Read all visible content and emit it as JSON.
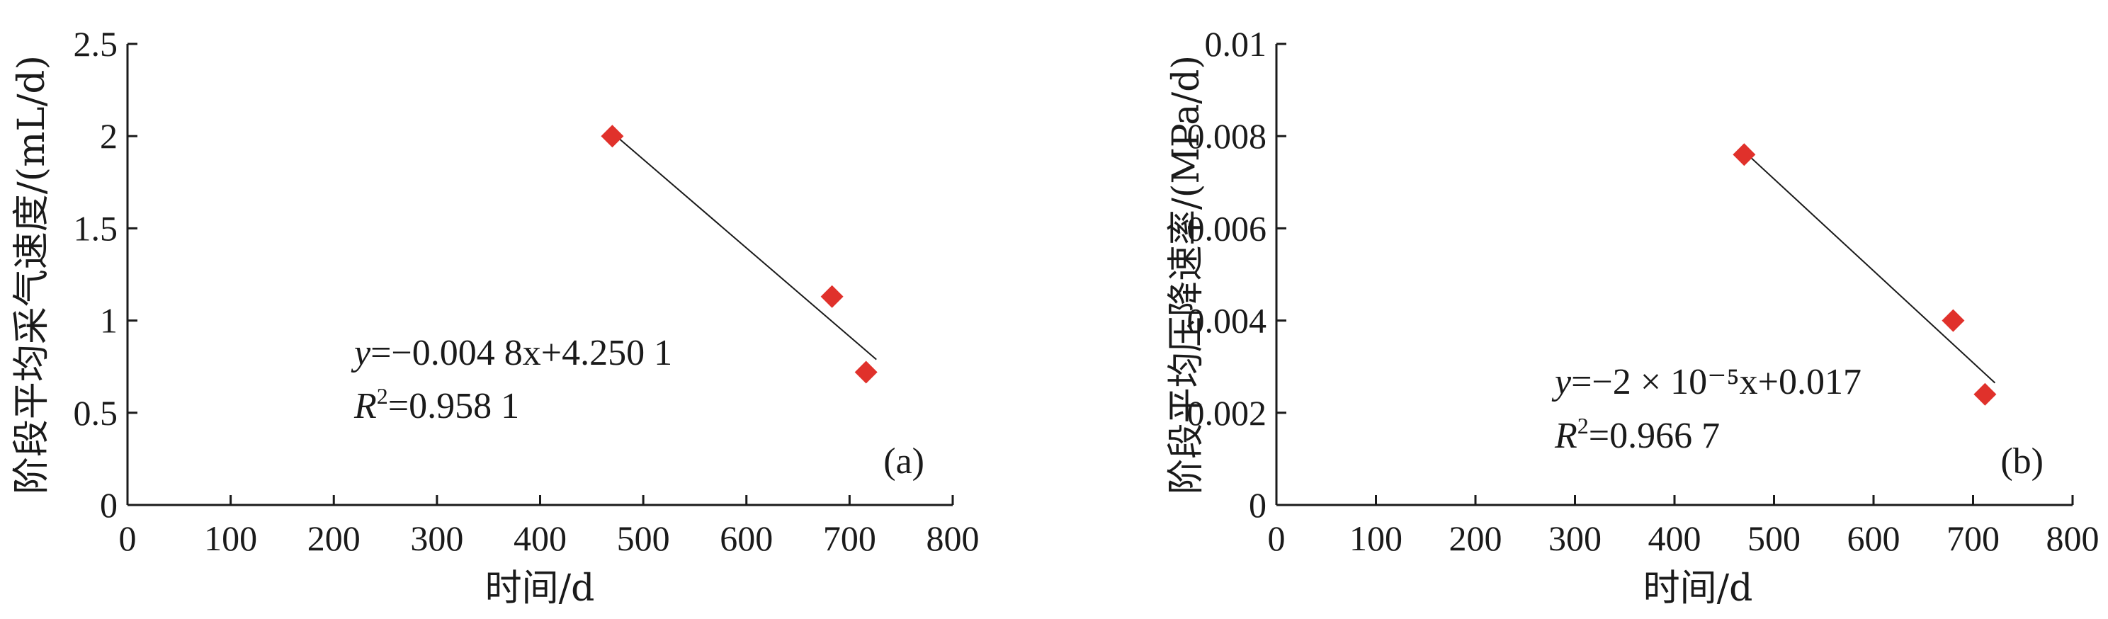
{
  "chart_data": [
    {
      "type": "scatter",
      "panel_label": "(a)",
      "xlabel": "时间/d",
      "ylabel": "阶段平均采气速度/(mL/d)",
      "xlim": [
        0,
        800
      ],
      "ylim": [
        0,
        2.5
      ],
      "xticks": [
        "0",
        "100",
        "200",
        "300",
        "400",
        "500",
        "600",
        "700",
        "800"
      ],
      "yticks": [
        "0",
        "0.5",
        "1",
        "1.5",
        "2",
        "2.5"
      ],
      "points": [
        {
          "x": 470,
          "y": 2.0
        },
        {
          "x": 683,
          "y": 1.13
        },
        {
          "x": 716,
          "y": 0.72
        }
      ],
      "marker_color": "#e0312b",
      "trendline": {
        "x_start": 470,
        "x_end": 716
      },
      "equation": {
        "y_var": "y",
        "rhs": "=−0.004 8x+4.250 1",
        "r_var": "R",
        "r_rhs": "=0.958 1"
      }
    },
    {
      "type": "scatter",
      "panel_label": "(b)",
      "xlabel": "时间/d",
      "ylabel": "阶段平均压降速率/(MPa/d)",
      "xlim": [
        0,
        800
      ],
      "ylim": [
        0,
        0.01
      ],
      "xticks": [
        "0",
        "100",
        "200",
        "300",
        "400",
        "500",
        "600",
        "700",
        "800"
      ],
      "yticks": [
        "0",
        "0.002",
        "0.004",
        "0.006",
        "0.008",
        "0.01"
      ],
      "points": [
        {
          "x": 470,
          "y": 0.0076
        },
        {
          "x": 680,
          "y": 0.004
        },
        {
          "x": 712,
          "y": 0.0024
        }
      ],
      "marker_color": "#e0312b",
      "trendline": {
        "x_start": 470,
        "x_end": 712
      },
      "equation": {
        "y_var": "y",
        "rhs": "=−2 × 10⁻⁵x+0.017",
        "r_var": "R",
        "r_rhs": "=0.966 7"
      }
    }
  ]
}
